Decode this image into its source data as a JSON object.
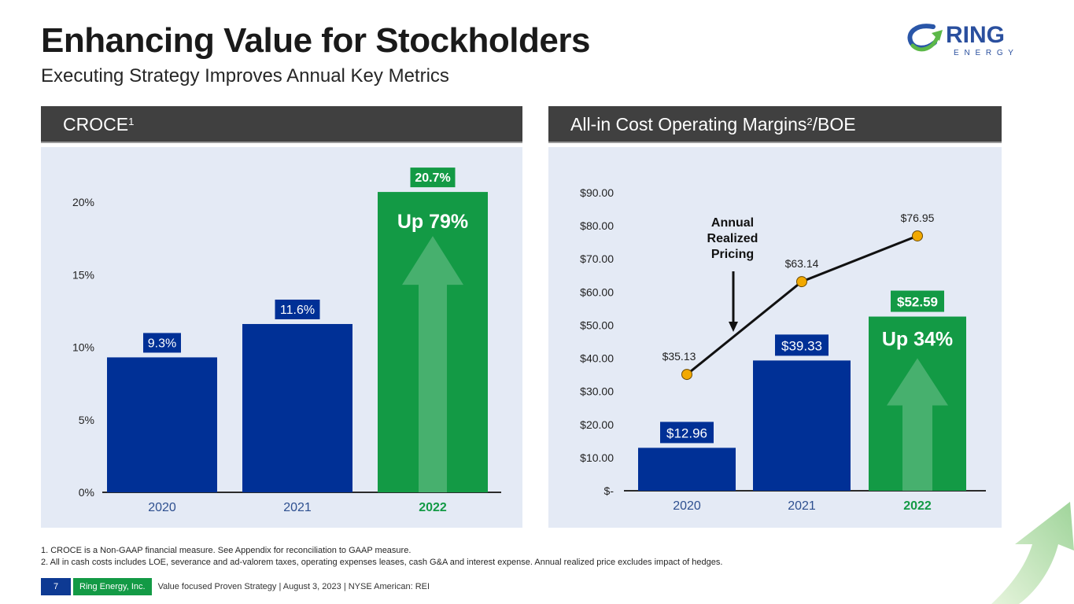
{
  "header": {
    "title": "Enhancing Value for Stockholders",
    "subtitle": "Executing Strategy Improves Annual Key Metrics",
    "logo": {
      "text": "RING",
      "subtext": "E N E R G Y",
      "icon": "ring-arrow-logo-icon"
    }
  },
  "colors": {
    "bar_blue": "#003096",
    "bar_green": "#139a45",
    "arrow_green": "#47b06e",
    "marker_orange": "#f2a900",
    "header_gray": "#404040",
    "panel_bg": "#e4eaf5",
    "year_blue": "#2d4f8f"
  },
  "panels": [
    {
      "title": "CROCE",
      "sup": "1"
    },
    {
      "title": "All-in Cost Operating Margins",
      "sup": "2",
      "suffix": "/BOE"
    }
  ],
  "chart_data": [
    {
      "type": "bar",
      "title": "CROCE",
      "categories": [
        "2020",
        "2021",
        "2022"
      ],
      "values": [
        9.3,
        11.6,
        20.7
      ],
      "data_labels": [
        "9.3%",
        "11.6%",
        "20.7%"
      ],
      "highlight_category": "2022",
      "annotation": "Up 79%",
      "ylim": [
        0,
        22
      ],
      "yticks": [
        0,
        5,
        10,
        15,
        20
      ],
      "ytick_labels": [
        "0%",
        "5%",
        "10%",
        "15%",
        "20%"
      ],
      "xlabel": "",
      "ylabel": "",
      "grid": false,
      "legend": "none"
    },
    {
      "type": "bar",
      "title": "All-in Cost Operating Margins/BOE",
      "categories": [
        "2020",
        "2021",
        "2022"
      ],
      "series": [
        {
          "name": "All-in Cost Operating Margin",
          "type": "bar",
          "values": [
            12.96,
            39.33,
            52.59
          ],
          "labels": [
            "$12.96",
            "$39.33",
            "$52.59"
          ]
        },
        {
          "name": "Annual Realized Pricing",
          "type": "line",
          "values": [
            35.13,
            63.14,
            76.95
          ],
          "labels": [
            "$35.13",
            "$63.14",
            "$76.95"
          ]
        }
      ],
      "highlight_category": "2022",
      "annotation": "Up 34%",
      "line_annotation": [
        "Annual",
        "Realized",
        "Pricing"
      ],
      "ylim": [
        0,
        90
      ],
      "yticks": [
        0,
        10,
        20,
        30,
        40,
        50,
        60,
        70,
        80,
        90
      ],
      "ytick_labels": [
        "$-",
        "$10.00",
        "$20.00",
        "$30.00",
        "$40.00",
        "$50.00",
        "$60.00",
        "$70.00",
        "$80.00",
        "$90.00"
      ],
      "xlabel": "",
      "ylabel": "",
      "grid": false,
      "legend": "none"
    }
  ],
  "footnotes": [
    "1.   CROCE is a Non-GAAP financial measure. See Appendix for reconciliation to GAAP measure.",
    "2.   All in cash costs includes LOE, severance and ad-valorem taxes, operating expenses leases, cash G&A and interest expense. Annual realized price excludes impact of hedges."
  ],
  "footer": {
    "page": "7",
    "company": "Ring Energy, Inc.",
    "text": "Value focused Proven Strategy  | August 3, 2023 |  NYSE American: REI"
  }
}
